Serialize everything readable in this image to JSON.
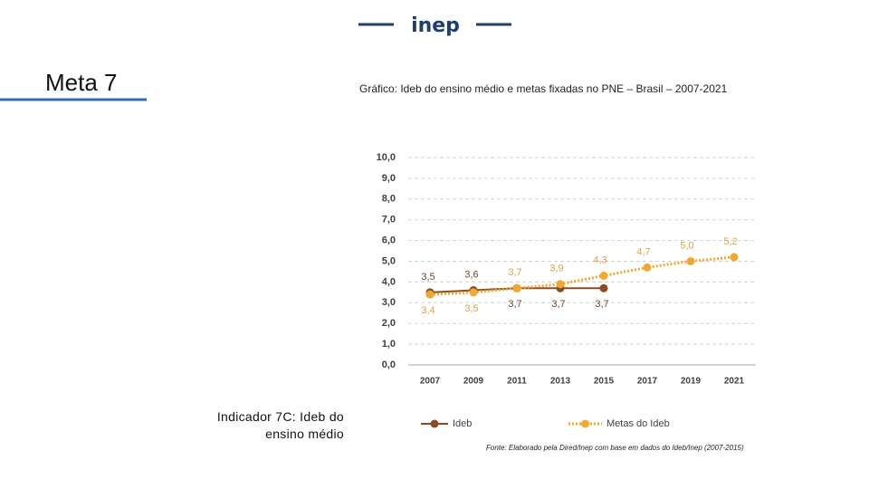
{
  "slide": {
    "logo": "inep",
    "heading": "Meta 7",
    "indicator": "Indicador 7C: Ideb do ensino médio",
    "source": "Fonte: Elaborado pela Dired/Inep com base em dados do Ideb/Inep (2007-2015)"
  },
  "chart_data": {
    "type": "line",
    "title": "Gráfico: Ideb do ensino médio e metas fixadas no PNE – Brasil – 2007-2021",
    "categories": [
      "2007",
      "2009",
      "2011",
      "2013",
      "2015",
      "2017",
      "2019",
      "2021"
    ],
    "series": [
      {
        "name": "Ideb",
        "color": "#8a4a22",
        "dash": false,
        "values": [
          3.5,
          3.6,
          3.7,
          3.7,
          3.7,
          null,
          null,
          null
        ],
        "value_labels": [
          "3,5",
          "3,6",
          "3,7",
          "3,7",
          "3,7",
          null,
          null,
          null
        ]
      },
      {
        "name": "Metas do Ideb",
        "color": "#f2a72e",
        "dash": true,
        "values": [
          3.4,
          3.5,
          3.7,
          3.9,
          4.3,
          4.7,
          5.0,
          5.2
        ],
        "value_labels": [
          "3,4",
          "3,5",
          "3,7",
          "3,9",
          "4,3",
          "4,7",
          "5,0",
          "5,2"
        ]
      }
    ],
    "ylim": [
      0,
      10
    ],
    "yticks": [
      {
        "value": 0,
        "label": "0,0"
      },
      {
        "value": 1,
        "label": "1,0"
      },
      {
        "value": 2,
        "label": "2,0"
      },
      {
        "value": 3,
        "label": "3,0"
      },
      {
        "value": 4,
        "label": "4,0"
      },
      {
        "value": 5,
        "label": "5,0"
      },
      {
        "value": 6,
        "label": "6,0"
      },
      {
        "value": 7,
        "label": "7,0"
      },
      {
        "value": 8,
        "label": "8,0"
      },
      {
        "value": 9,
        "label": "9,0"
      },
      {
        "value": 10,
        "label": "10,0"
      }
    ],
    "grid": true
  }
}
